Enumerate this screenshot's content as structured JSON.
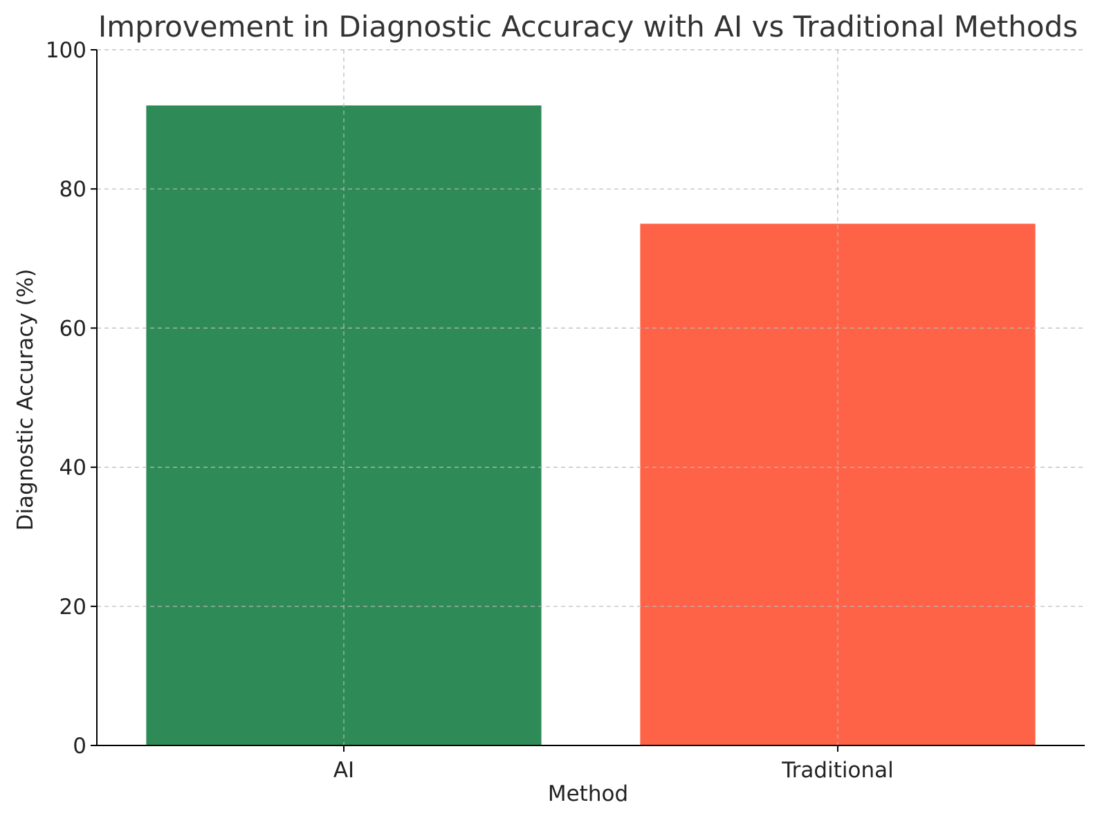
{
  "chart_data": {
    "type": "bar",
    "title": "Improvement in Diagnostic Accuracy with AI vs Traditional Methods",
    "xlabel": "Method",
    "ylabel": "Diagnostic Accuracy (%)",
    "categories": [
      "AI",
      "Traditional"
    ],
    "values": [
      92,
      75
    ],
    "colors": [
      "#2e8b57",
      "#ff6347"
    ],
    "ylim": [
      0,
      100
    ],
    "yticks": [
      0,
      20,
      40,
      60,
      80,
      100
    ],
    "grid": true,
    "legend": "none"
  }
}
